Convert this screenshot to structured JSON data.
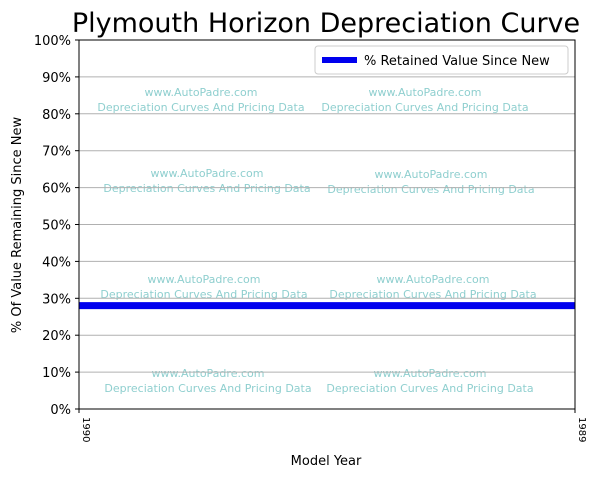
{
  "chart_data": {
    "type": "line",
    "title": "Plymouth Horizon Depreciation Curve",
    "xlabel": "Model Year",
    "ylabel": "% Of Value Remaining Since New",
    "x": [
      "1990",
      "1989"
    ],
    "ylim": [
      0,
      100
    ],
    "yticks": [
      "0%",
      "10%",
      "20%",
      "30%",
      "40%",
      "50%",
      "60%",
      "70%",
      "80%",
      "90%",
      "100%"
    ],
    "grid": "horizontal",
    "legend_position": "top-right",
    "series": [
      {
        "name": "% Retained Value Since New",
        "values": [
          28,
          28
        ],
        "color": "#0000ee"
      }
    ],
    "watermark": {
      "line1": "www.AutoPadre.com",
      "line2": "Depreciation Curves And Pricing Data"
    }
  }
}
